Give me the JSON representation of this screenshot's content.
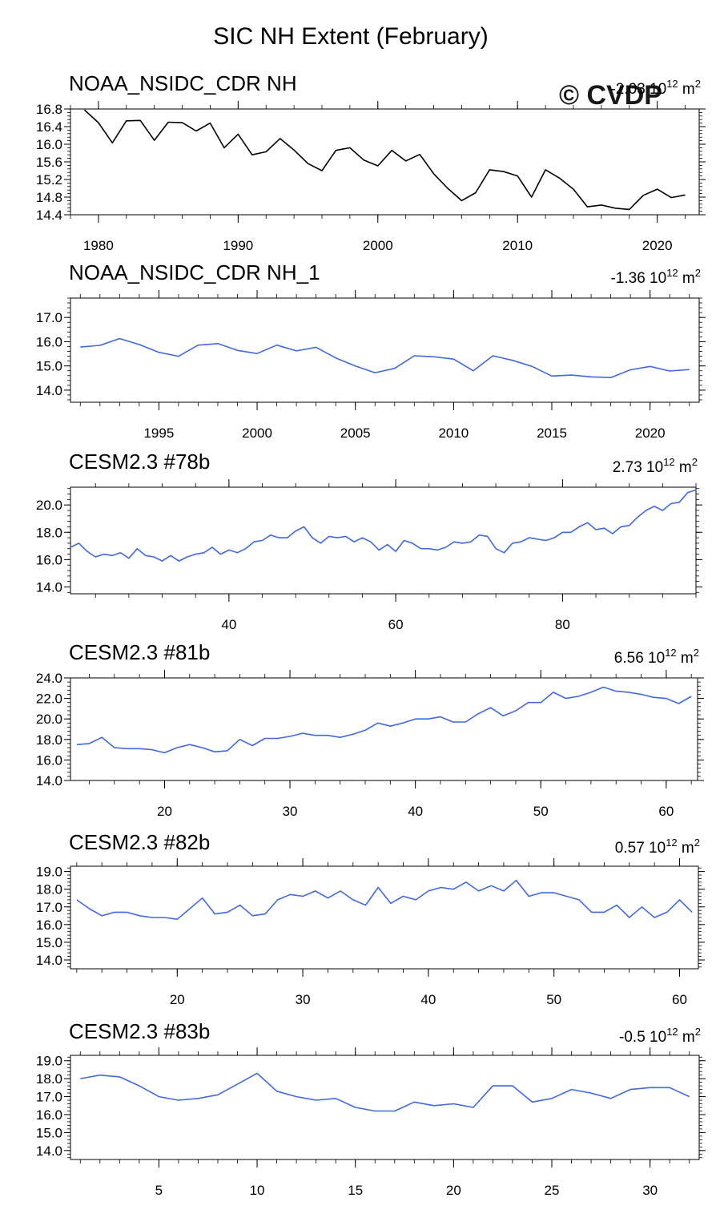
{
  "page_title": "SIC NH Extent (February)",
  "watermark": "© CVDP",
  "colors": {
    "obs_line": "#000000",
    "model_line": "#4169e1",
    "axis": "#000000",
    "watermark": "#c8c8c8"
  },
  "chart_data": [
    {
      "type": "line",
      "title": "NOAA_NSIDC_CDR NH",
      "trend_label": "-2.03 10",
      "trend_exp": "12",
      "trend_unit": " m",
      "trend_unit_exp": "2",
      "line_color": "#000000",
      "xlim": [
        1978,
        2023
      ],
      "ylim": [
        14.4,
        16.8
      ],
      "x_ticks": [
        1980,
        1990,
        2000,
        2010,
        2020
      ],
      "y_ticks": [
        14.4,
        14.8,
        15.2,
        15.6,
        16.0,
        16.4,
        16.8
      ],
      "y_decimals": 1,
      "x": [
        1979,
        1980,
        1981,
        1982,
        1983,
        1984,
        1985,
        1986,
        1987,
        1988,
        1989,
        1990,
        1991,
        1992,
        1993,
        1994,
        1995,
        1996,
        1997,
        1998,
        1999,
        2000,
        2001,
        2002,
        2003,
        2004,
        2005,
        2006,
        2007,
        2008,
        2009,
        2010,
        2011,
        2012,
        2013,
        2014,
        2015,
        2016,
        2017,
        2018,
        2019,
        2020,
        2021,
        2022
      ],
      "values": [
        16.78,
        16.49,
        16.03,
        16.53,
        16.54,
        16.09,
        16.5,
        16.49,
        16.3,
        16.48,
        15.92,
        16.23,
        15.76,
        15.83,
        16.13,
        15.87,
        15.56,
        15.4,
        15.86,
        15.92,
        15.64,
        15.51,
        15.86,
        15.62,
        15.77,
        15.33,
        15.0,
        14.72,
        14.9,
        15.42,
        15.38,
        15.28,
        14.8,
        15.42,
        15.23,
        14.98,
        14.58,
        14.62,
        14.55,
        14.52,
        14.84,
        14.98,
        14.79,
        14.85
      ]
    },
    {
      "type": "line",
      "title": "NOAA_NSIDC_CDR NH_1",
      "trend_label": "-1.36 10",
      "trend_exp": "12",
      "trend_unit": " m",
      "trend_unit_exp": "2",
      "line_color": "#4169e1",
      "xlim": [
        1990.5,
        2022.5
      ],
      "ylim": [
        13.5,
        17.8
      ],
      "x_ticks": [
        1995,
        2000,
        2005,
        2010,
        2015,
        2020
      ],
      "y_ticks": [
        14.0,
        15.0,
        16.0,
        17.0
      ],
      "y_decimals": 1,
      "x": [
        1991,
        1992,
        1993,
        1994,
        1995,
        1996,
        1997,
        1998,
        1999,
        2000,
        2001,
        2002,
        2003,
        2004,
        2005,
        2006,
        2007,
        2008,
        2009,
        2010,
        2011,
        2012,
        2013,
        2014,
        2015,
        2016,
        2017,
        2018,
        2019,
        2020,
        2021,
        2022
      ],
      "values": [
        15.78,
        15.85,
        16.13,
        15.88,
        15.56,
        15.4,
        15.86,
        15.92,
        15.64,
        15.51,
        15.86,
        15.62,
        15.77,
        15.33,
        15.0,
        14.72,
        14.9,
        15.42,
        15.38,
        15.28,
        14.8,
        15.42,
        15.23,
        14.98,
        14.58,
        14.62,
        14.55,
        14.52,
        14.84,
        14.98,
        14.79,
        14.85
      ]
    },
    {
      "type": "line",
      "title": "CESM2.3 #78b",
      "trend_label": "2.73 10",
      "trend_exp": "12",
      "trend_unit": " m",
      "trend_unit_exp": "2",
      "line_color": "#4169e1",
      "xlim": [
        21,
        96
      ],
      "ylim": [
        13.5,
        21.3
      ],
      "x_ticks": [
        40,
        60,
        80
      ],
      "y_ticks": [
        14.0,
        16.0,
        18.0,
        20.0
      ],
      "y_decimals": 1,
      "x": [
        21,
        22,
        23,
        24,
        25,
        26,
        27,
        28,
        29,
        30,
        31,
        32,
        33,
        34,
        35,
        36,
        37,
        38,
        39,
        40,
        41,
        42,
        43,
        44,
        45,
        46,
        47,
        48,
        49,
        50,
        51,
        52,
        53,
        54,
        55,
        56,
        57,
        58,
        59,
        60,
        61,
        62,
        63,
        64,
        65,
        66,
        67,
        68,
        69,
        70,
        71,
        72,
        73,
        74,
        75,
        76,
        77,
        78,
        79,
        80,
        81,
        82,
        83,
        84,
        85,
        86,
        87,
        88,
        89,
        90,
        91,
        92,
        93,
        94,
        95,
        96
      ],
      "values": [
        16.9,
        17.2,
        16.6,
        16.2,
        16.4,
        16.3,
        16.5,
        16.1,
        16.8,
        16.3,
        16.2,
        15.9,
        16.3,
        15.9,
        16.2,
        16.4,
        16.5,
        16.9,
        16.4,
        16.7,
        16.5,
        16.8,
        17.3,
        17.4,
        17.8,
        17.6,
        17.6,
        18.1,
        18.4,
        17.6,
        17.2,
        17.7,
        17.6,
        17.7,
        17.3,
        17.6,
        17.3,
        16.7,
        17.1,
        16.6,
        17.4,
        17.2,
        16.8,
        16.8,
        16.7,
        16.9,
        17.3,
        17.2,
        17.3,
        17.8,
        17.7,
        16.8,
        16.5,
        17.2,
        17.3,
        17.6,
        17.5,
        17.4,
        17.6,
        18.0,
        18.0,
        18.4,
        18.7,
        18.2,
        18.3,
        17.9,
        18.4,
        18.5,
        19.1,
        19.6,
        19.9,
        19.6,
        20.1,
        20.2,
        20.9,
        21.1
      ]
    },
    {
      "type": "line",
      "title": "CESM2.3 #81b",
      "trend_label": "6.56 10",
      "trend_exp": "12",
      "trend_unit": " m",
      "trend_unit_exp": "2",
      "line_color": "#4169e1",
      "xlim": [
        12.5,
        62.5
      ],
      "ylim": [
        14.0,
        24.0
      ],
      "x_ticks": [
        20,
        30,
        40,
        50,
        60
      ],
      "y_ticks": [
        14.0,
        16.0,
        18.0,
        20.0,
        22.0,
        24.0
      ],
      "y_decimals": 1,
      "x": [
        13,
        14,
        15,
        16,
        17,
        18,
        19,
        20,
        21,
        22,
        23,
        24,
        25,
        26,
        27,
        28,
        29,
        30,
        31,
        32,
        33,
        34,
        35,
        36,
        37,
        38,
        39,
        40,
        41,
        42,
        43,
        44,
        45,
        46,
        47,
        48,
        49,
        50,
        51,
        52,
        53,
        54,
        55,
        56,
        57,
        58,
        59,
        60,
        61,
        62
      ],
      "values": [
        17.5,
        17.6,
        18.2,
        17.2,
        17.1,
        17.1,
        17.0,
        16.7,
        17.2,
        17.5,
        17.2,
        16.8,
        16.9,
        18.0,
        17.4,
        18.1,
        18.1,
        18.3,
        18.6,
        18.4,
        18.4,
        18.2,
        18.5,
        18.9,
        19.6,
        19.3,
        19.6,
        20.0,
        20.0,
        20.2,
        19.7,
        19.7,
        20.5,
        21.1,
        20.3,
        20.8,
        21.6,
        21.6,
        22.6,
        22.0,
        22.2,
        22.6,
        23.1,
        22.7,
        22.6,
        22.4,
        22.1,
        22.0,
        21.5,
        22.2
      ]
    },
    {
      "type": "line",
      "title": "CESM2.3 #82b",
      "trend_label": "0.57 10",
      "trend_exp": "12",
      "trend_unit": " m",
      "trend_unit_exp": "2",
      "line_color": "#4169e1",
      "xlim": [
        11.5,
        61.5
      ],
      "ylim": [
        13.5,
        19.3
      ],
      "x_ticks": [
        20,
        30,
        40,
        50,
        60
      ],
      "y_ticks": [
        14.0,
        15.0,
        16.0,
        17.0,
        18.0,
        19.0
      ],
      "y_decimals": 1,
      "x": [
        12,
        13,
        14,
        15,
        16,
        17,
        18,
        19,
        20,
        21,
        22,
        23,
        24,
        25,
        26,
        27,
        28,
        29,
        30,
        31,
        32,
        33,
        34,
        35,
        36,
        37,
        38,
        39,
        40,
        41,
        42,
        43,
        44,
        45,
        46,
        47,
        48,
        49,
        50,
        51,
        52,
        53,
        54,
        55,
        56,
        57,
        58,
        59,
        60,
        61
      ],
      "values": [
        17.4,
        16.9,
        16.5,
        16.7,
        16.7,
        16.5,
        16.4,
        16.4,
        16.3,
        16.9,
        17.5,
        16.6,
        16.7,
        17.1,
        16.5,
        16.6,
        17.4,
        17.7,
        17.6,
        17.9,
        17.5,
        17.9,
        17.4,
        17.1,
        18.1,
        17.2,
        17.6,
        17.4,
        17.9,
        18.1,
        18.0,
        18.4,
        17.9,
        18.2,
        17.9,
        18.5,
        17.6,
        17.8,
        17.8,
        17.6,
        17.4,
        16.7,
        16.7,
        17.1,
        16.4,
        17.0,
        16.4,
        16.7,
        17.4,
        16.7
      ]
    },
    {
      "type": "line",
      "title": "CESM2.3 #83b",
      "trend_label": "-0.5 10",
      "trend_exp": "12",
      "trend_unit": " m",
      "trend_unit_exp": "2",
      "line_color": "#4169e1",
      "xlim": [
        0.5,
        32.5
      ],
      "ylim": [
        13.5,
        19.3
      ],
      "x_ticks": [
        5,
        10,
        15,
        20,
        25,
        30
      ],
      "y_ticks": [
        14.0,
        15.0,
        16.0,
        17.0,
        18.0,
        19.0
      ],
      "y_decimals": 1,
      "x": [
        1,
        2,
        3,
        4,
        5,
        6,
        7,
        8,
        9,
        10,
        11,
        12,
        13,
        14,
        15,
        16,
        17,
        18,
        19,
        20,
        21,
        22,
        23,
        24,
        25,
        26,
        27,
        28,
        29,
        30,
        31,
        32
      ],
      "values": [
        18.0,
        18.2,
        18.1,
        17.6,
        17.0,
        16.8,
        16.9,
        17.1,
        17.7,
        18.3,
        17.3,
        17.0,
        16.8,
        16.9,
        16.4,
        16.2,
        16.2,
        16.7,
        16.5,
        16.6,
        16.4,
        17.6,
        17.6,
        16.7,
        16.9,
        17.4,
        17.2,
        16.9,
        17.4,
        17.5,
        17.5,
        17.0
      ]
    }
  ]
}
